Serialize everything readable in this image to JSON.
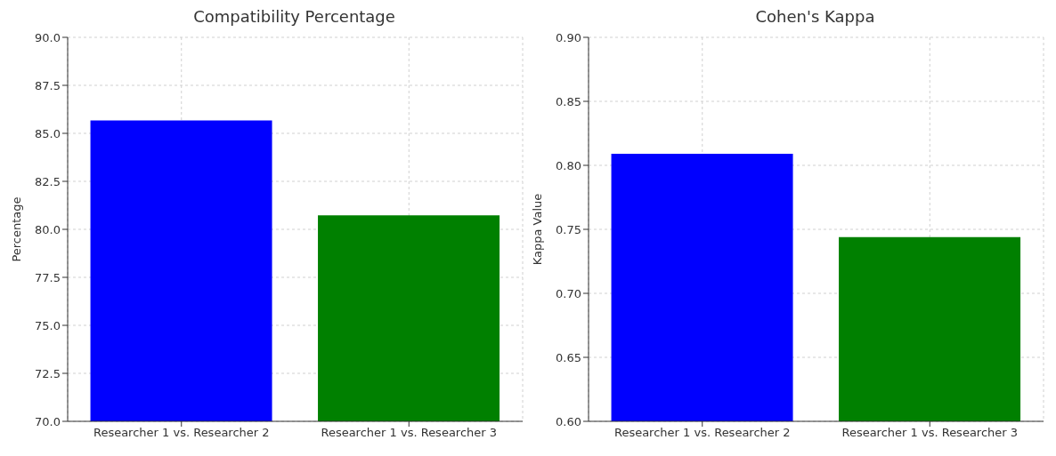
{
  "chart_data": [
    {
      "type": "bar",
      "title": "Compatibility Percentage",
      "ylabel": "Percentage",
      "categories": [
        "Researcher 1 vs. Researcher 2",
        "Researcher 1 vs. Researcher 3"
      ],
      "values": [
        85.67,
        80.73
      ],
      "colors": [
        "#0000ff",
        "#008000"
      ],
      "ylim": [
        70,
        90
      ],
      "yticks": [
        {
          "value": 70,
          "label": "70.0"
        },
        {
          "value": 72.5,
          "label": "72.5"
        },
        {
          "value": 75,
          "label": "75.0"
        },
        {
          "value": 77.5,
          "label": "77.5"
        },
        {
          "value": 80,
          "label": "80.0"
        },
        {
          "value": 82.5,
          "label": "82.5"
        },
        {
          "value": 85,
          "label": "85.0"
        },
        {
          "value": 87.5,
          "label": "87.5"
        },
        {
          "value": 90,
          "label": "90.0"
        }
      ],
      "grid": true
    },
    {
      "type": "bar",
      "title": "Cohen's Kappa",
      "ylabel": "Kappa Value",
      "categories": [
        "Researcher 1 vs. Researcher 2",
        "Researcher 1 vs. Researcher 3"
      ],
      "values": [
        0.809,
        0.744
      ],
      "colors": [
        "#0000ff",
        "#008000"
      ],
      "ylim": [
        0.6,
        0.9
      ],
      "yticks": [
        {
          "value": 0.6,
          "label": "0.60"
        },
        {
          "value": 0.65,
          "label": "0.65"
        },
        {
          "value": 0.7,
          "label": "0.70"
        },
        {
          "value": 0.75,
          "label": "0.75"
        },
        {
          "value": 0.8,
          "label": "0.80"
        },
        {
          "value": 0.85,
          "label": "0.85"
        },
        {
          "value": 0.9,
          "label": "0.90"
        }
      ],
      "grid": true
    }
  ]
}
